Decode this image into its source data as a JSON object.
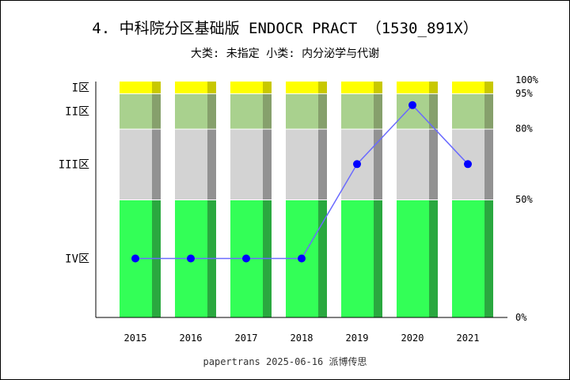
{
  "chart_data": {
    "type": "bar",
    "title": "4. 中科院分区基础版 ENDOCR PRACT （1530_891X）",
    "subtitle": "大类: 未指定 小类: 内分泌学与代谢",
    "footer": "papertrans 2025-06-16 派博传思",
    "categories": [
      "2015",
      "2016",
      "2017",
      "2018",
      "2019",
      "2020",
      "2021"
    ],
    "zones": [
      {
        "label": "IV区",
        "from": 0,
        "to": 50,
        "color": "#33ff57",
        "shade": "#2aa83f"
      },
      {
        "label": "III区",
        "from": 50,
        "to": 80,
        "color": "#d3d3d3",
        "shade": "#929292"
      },
      {
        "label": "II区",
        "from": 80,
        "to": 95,
        "color": "#a9d18e",
        "shade": "#86a06c"
      },
      {
        "label": "I区",
        "from": 95,
        "to": 100,
        "color": "#ffff00",
        "shade": "#c8c800"
      }
    ],
    "right_ticks": [
      "0%",
      "50%",
      "80%",
      "95%",
      "100%"
    ],
    "right_tick_values": [
      0,
      50,
      80,
      95,
      100
    ],
    "series": [
      {
        "values": [
          25,
          25,
          25,
          25,
          65,
          90,
          65
        ],
        "color": "#0000ff",
        "line_color": "#6a6aff"
      }
    ],
    "ylim": [
      0,
      100
    ]
  }
}
